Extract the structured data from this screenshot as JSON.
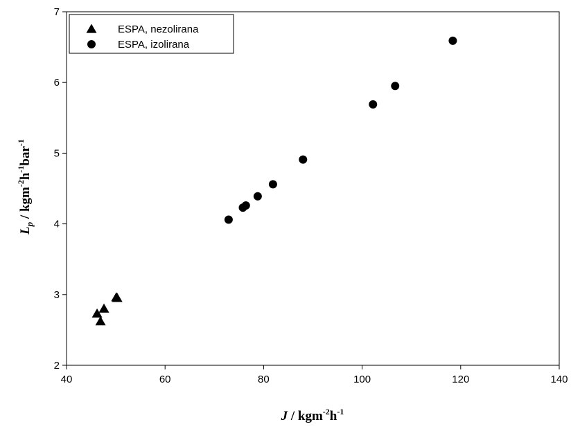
{
  "chart_data": {
    "type": "scatter",
    "xlabel": {
      "var": "J",
      "unit": " / kgm",
      "exp1": "-2",
      "mid": "h",
      "exp2": "-1"
    },
    "ylabel": {
      "var": "L",
      "sub": "p",
      "unit": " / kgm",
      "exp1": "-2",
      "h": "h",
      "exp2": "-1",
      "bar": "bar",
      "exp3": "-1"
    },
    "xlim": [
      40,
      140
    ],
    "ylim": [
      2,
      7
    ],
    "x_ticks": [
      40,
      60,
      80,
      100,
      120,
      140
    ],
    "y_ticks": [
      2,
      3,
      4,
      5,
      6,
      7
    ],
    "grid": false,
    "legend_position": "top-left",
    "series": [
      {
        "name": "ESPA, nezolirana",
        "marker": "triangle",
        "color": "#000000",
        "points": [
          [
            46.2,
            2.73
          ],
          [
            46.9,
            2.62
          ],
          [
            47.6,
            2.8
          ],
          [
            50.1,
            2.96
          ],
          [
            50.3,
            2.95
          ]
        ]
      },
      {
        "name": "ESPA, izolirana",
        "marker": "circle",
        "color": "#000000",
        "points": [
          [
            72.9,
            4.06
          ],
          [
            75.8,
            4.23
          ],
          [
            76.4,
            4.26
          ],
          [
            78.8,
            4.39
          ],
          [
            81.9,
            4.56
          ],
          [
            88.0,
            4.91
          ],
          [
            102.2,
            5.69
          ],
          [
            106.7,
            5.95
          ],
          [
            118.4,
            6.59
          ]
        ]
      }
    ]
  }
}
